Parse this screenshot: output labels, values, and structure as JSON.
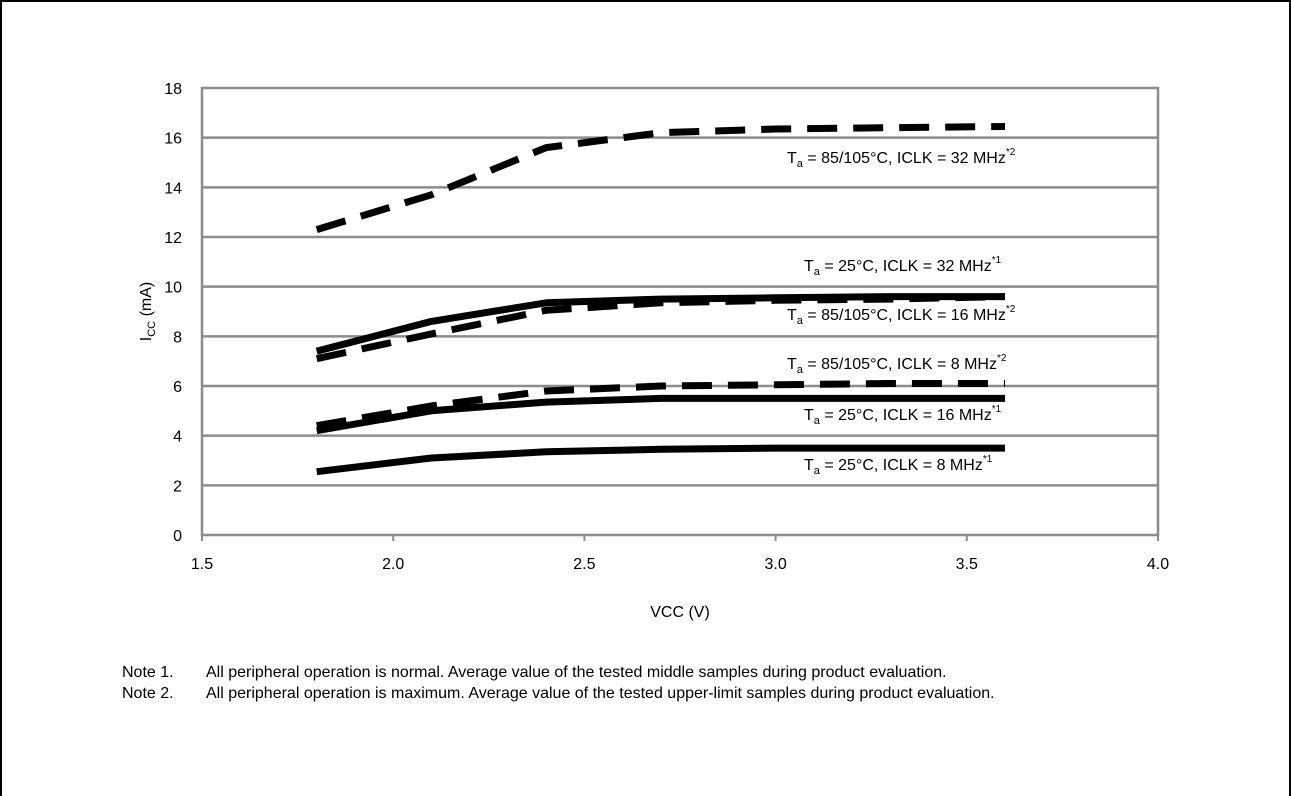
{
  "chart_data": {
    "type": "line",
    "xlabel": "VCC (V)",
    "ylabel": {
      "main": "I",
      "sub": "CC",
      "unit": " (mA)"
    },
    "xlim": [
      1.5,
      4.0
    ],
    "ylim": [
      0,
      18
    ],
    "x_ticks": [
      "1.5",
      "2.0",
      "2.5",
      "3.0",
      "3.5",
      "4.0"
    ],
    "y_ticks": [
      "0",
      "2",
      "4",
      "6",
      "8",
      "10",
      "12",
      "14",
      "16",
      "18"
    ],
    "grid": "horizontal",
    "legend": "inline labels next to curves",
    "series": [
      {
        "label": {
          "pre": "T",
          "sub": "a",
          "main": " = 85/105°C, ICLK = 32 MHz",
          "sup": "*2"
        },
        "style": "dashed",
        "x": [
          1.8,
          2.1,
          2.4,
          2.7,
          3.0,
          3.3,
          3.6
        ],
        "y": [
          12.3,
          13.7,
          15.6,
          16.2,
          16.35,
          16.4,
          16.45
        ]
      },
      {
        "label": {
          "pre": "T",
          "sub": "a",
          "main": " = 25°C, ICLK = 32 MHz",
          "sup": "*1"
        },
        "style": "solid",
        "x": [
          1.8,
          2.1,
          2.4,
          2.7,
          3.0,
          3.3,
          3.6
        ],
        "y": [
          7.4,
          8.6,
          9.35,
          9.5,
          9.55,
          9.6,
          9.6
        ]
      },
      {
        "label": {
          "pre": "T",
          "sub": "a",
          "main": " = 85/105°C, ICLK = 16 MHz",
          "sup": "*2"
        },
        "style": "dashed",
        "x": [
          1.8,
          2.1,
          2.4,
          2.7,
          3.0,
          3.3,
          3.6
        ],
        "y": [
          7.1,
          8.1,
          9.05,
          9.35,
          9.45,
          9.5,
          9.6
        ]
      },
      {
        "label": {
          "pre": "T",
          "sub": "a",
          "main": " = 85/105°C, ICLK = 8 MHz",
          "sup": "*2"
        },
        "style": "dashed",
        "x": [
          1.8,
          2.1,
          2.4,
          2.7,
          3.0,
          3.3,
          3.6
        ],
        "y": [
          4.4,
          5.2,
          5.8,
          6.0,
          6.05,
          6.1,
          6.1
        ]
      },
      {
        "label": {
          "pre": "T",
          "sub": "a",
          "main": " = 25°C, ICLK = 16 MHz",
          "sup": "*1"
        },
        "style": "solid",
        "x": [
          1.8,
          2.1,
          2.4,
          2.7,
          3.0,
          3.3,
          3.6
        ],
        "y": [
          4.2,
          5.0,
          5.35,
          5.5,
          5.5,
          5.5,
          5.5
        ]
      },
      {
        "label": {
          "pre": "T",
          "sub": "a",
          "main": " = 25°C, ICLK = 8 MHz",
          "sup": "*1"
        },
        "style": "solid",
        "x": [
          1.8,
          2.1,
          2.4,
          2.7,
          3.0,
          3.3,
          3.6
        ],
        "y": [
          2.55,
          3.1,
          3.35,
          3.45,
          3.5,
          3.5,
          3.5
        ]
      }
    ]
  },
  "notes": [
    {
      "label": "Note 1.",
      "text": "All peripheral operation is normal. Average value of the tested middle samples during product evaluation."
    },
    {
      "label": "Note 2.",
      "text": "All peripheral operation is maximum. Average value of the tested upper-limit samples during product evaluation."
    }
  ]
}
